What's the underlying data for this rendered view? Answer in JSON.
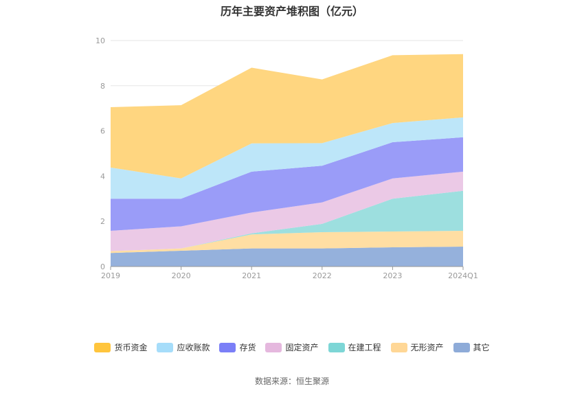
{
  "chart_data": {
    "type": "area",
    "stacked": true,
    "title": "历年主要资产堆积图（亿元）",
    "categories": [
      "2019",
      "2020",
      "2021",
      "2022",
      "2023",
      "2024Q1"
    ],
    "y_ticks": [
      "0",
      "2",
      "4",
      "6",
      "8",
      "10"
    ],
    "ylim": [
      0,
      10
    ],
    "grid": true,
    "legend_position": "bottom",
    "series": [
      {
        "name": "其它",
        "color": "#95b1dc",
        "values": [
          0.6,
          0.7,
          0.8,
          0.8,
          0.85,
          0.88
        ]
      },
      {
        "name": "无形资产",
        "color": "#ffdea3",
        "values": [
          0.08,
          0.1,
          0.62,
          0.72,
          0.7,
          0.7
        ]
      },
      {
        "name": "在建工程",
        "color": "#9ddfdf",
        "values": [
          0.0,
          0.0,
          0.05,
          0.37,
          1.45,
          1.77
        ]
      },
      {
        "name": "固定资产",
        "color": "#ebc9e6",
        "values": [
          0.9,
          0.98,
          0.92,
          0.95,
          0.9,
          0.85
        ]
      },
      {
        "name": "存货",
        "color": "#9a9cf8",
        "values": [
          1.42,
          1.22,
          1.81,
          1.62,
          1.6,
          1.52
        ]
      },
      {
        "name": "应收账款",
        "color": "#bde6f9",
        "values": [
          1.38,
          0.9,
          1.25,
          1.0,
          0.85,
          0.88
        ]
      },
      {
        "name": "货币资金",
        "color": "#ffd680",
        "values": [
          2.67,
          3.24,
          3.35,
          2.82,
          3.0,
          2.8
        ]
      }
    ],
    "legend": [
      {
        "name": "货币资金",
        "color": "#ffc53d"
      },
      {
        "name": "应收账款",
        "color": "#a6ddfa"
      },
      {
        "name": "存货",
        "color": "#7b7ff7"
      },
      {
        "name": "固定资产",
        "color": "#e5b8de"
      },
      {
        "name": "在建工程",
        "color": "#7dd6d6"
      },
      {
        "name": "无形资产",
        "color": "#ffd796"
      },
      {
        "name": "其它",
        "color": "#8eabd8"
      }
    ]
  },
  "source": "数据来源：恒生聚源"
}
